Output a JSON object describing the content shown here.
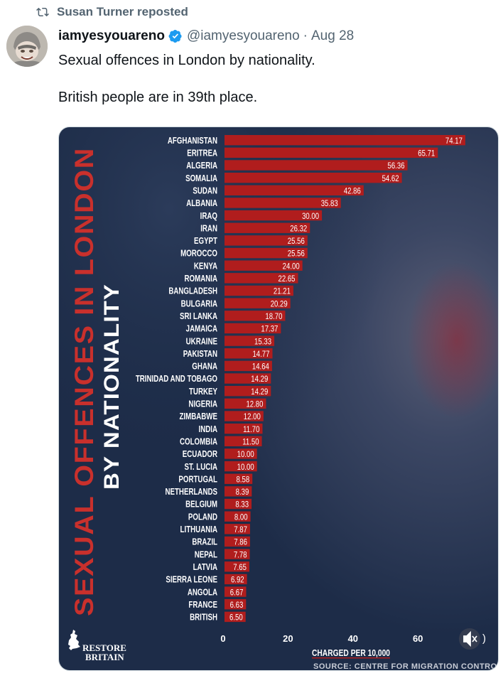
{
  "repost": {
    "icon": "repost-icon",
    "text": "Susan Turner reposted"
  },
  "tweet": {
    "author_name": "iamyesyouareno",
    "handle": "@iamyesyouareno",
    "separator": "·",
    "date": "Aug 28",
    "verified_icon": "verified-badge-icon",
    "verified_color": "#1d9bf0",
    "lines": [
      "Sexual offences in London by nationality.",
      "British people are in 39th place."
    ]
  },
  "media": {
    "title_main": "SEXUAL OFFENCES IN LONDON",
    "title_sub": "BY NATIONALITY",
    "brand": [
      "RESTORE",
      "BRITAIN"
    ],
    "brand_icon": "uk-map-icon",
    "mute_icon": "mute-icon",
    "mute_fragment": ")",
    "colors": {
      "bar": "#b01d1d",
      "title": "#c9302c",
      "background": "#1e2e4a"
    }
  },
  "chart_data": {
    "type": "bar",
    "orientation": "horizontal",
    "title": "SEXUAL OFFENCES IN LONDON BY NATIONALITY",
    "xlabel": "CHARGED PER 10,000",
    "source": "SOURCE: CENTRE FOR MIGRATION CONTRO",
    "xlim": [
      0,
      80
    ],
    "xticks": [
      "0",
      "20",
      "40",
      "60"
    ],
    "grid": false,
    "categories": [
      "AFGHANISTAN",
      "ERITREA",
      "ALGERIA",
      "SOMALIA",
      "SUDAN",
      "ALBANIA",
      "IRAQ",
      "IRAN",
      "EGYPT",
      "MOROCCO",
      "KENYA",
      "ROMANIA",
      "BANGLADESH",
      "BULGARIA",
      "SRI LANKA",
      "JAMAICA",
      "UKRAINE",
      "PAKISTAN",
      "GHANA",
      "TRINIDAD AND TOBAGO",
      "TURKEY",
      "NIGERIA",
      "ZIMBABWE",
      "INDIA",
      "COLOMBIA",
      "ECUADOR",
      "ST. LUCIA",
      "PORTUGAL",
      "NETHERLANDS",
      "BELGIUM",
      "POLAND",
      "LITHUANIA",
      "BRAZIL",
      "NEPAL",
      "LATVIA",
      "SIERRA LEONE",
      "ANGOLA",
      "FRANCE",
      "BRITISH"
    ],
    "values": [
      74.17,
      65.71,
      56.36,
      54.62,
      42.86,
      35.83,
      30.0,
      26.32,
      25.56,
      25.56,
      24.0,
      22.65,
      21.21,
      20.29,
      18.7,
      17.37,
      15.33,
      14.77,
      14.64,
      14.29,
      14.29,
      12.8,
      12.0,
      11.7,
      11.5,
      10.0,
      10.0,
      8.58,
      8.39,
      8.33,
      8.0,
      7.87,
      7.86,
      7.78,
      7.65,
      6.92,
      6.67,
      6.63,
      6.5
    ],
    "value_labels": [
      "74.17",
      "65.71",
      "56.36",
      "54.62",
      "42.86",
      "35.83",
      "30.00",
      "26.32",
      "25.56",
      "25.56",
      "24.00",
      "22.65",
      "21.21",
      "20.29",
      "18.70",
      "17.37",
      "15.33",
      "14.77",
      "14.64",
      "14.29",
      "14.29",
      "12.80",
      "12.00",
      "11.70",
      "11.50",
      "10.00",
      "10.00",
      "8.58",
      "8.39",
      "8.33",
      "8.00",
      "7.87",
      "7.86",
      "7.78",
      "7.65",
      "6.92",
      "6.67",
      "6.63",
      "6.50"
    ]
  }
}
